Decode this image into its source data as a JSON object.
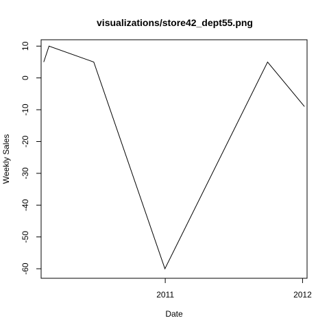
{
  "chart_data": {
    "type": "line",
    "title": "visualizations/store42_dept55.png",
    "xlabel": "Date",
    "ylabel": "Weekly Sales",
    "xlim": [
      "2010-02-05",
      "2012-01-13"
    ],
    "ylim": [
      -63,
      12
    ],
    "x_ticks": [
      {
        "value": "2011-01-01",
        "label": "2011"
      },
      {
        "value": "2012-01-01",
        "label": "2012"
      }
    ],
    "y_ticks": [
      {
        "value": 10,
        "label": "10"
      },
      {
        "value": 0,
        "label": "0"
      },
      {
        "value": -10,
        "label": "-10"
      },
      {
        "value": -20,
        "label": "-20"
      },
      {
        "value": -30,
        "label": "-30"
      },
      {
        "value": -40,
        "label": "-40"
      },
      {
        "value": -50,
        "label": "-50"
      },
      {
        "value": -60,
        "label": "-60"
      }
    ],
    "series": [
      {
        "color": "#000000",
        "x": [
          "2010-02-12",
          "2010-02-26",
          "2010-06-25",
          "2010-12-31",
          "2011-09-30",
          "2012-01-06"
        ],
        "y": [
          5,
          10,
          5,
          -60,
          5,
          -9
        ]
      }
    ],
    "grid": false,
    "legend": "none"
  }
}
